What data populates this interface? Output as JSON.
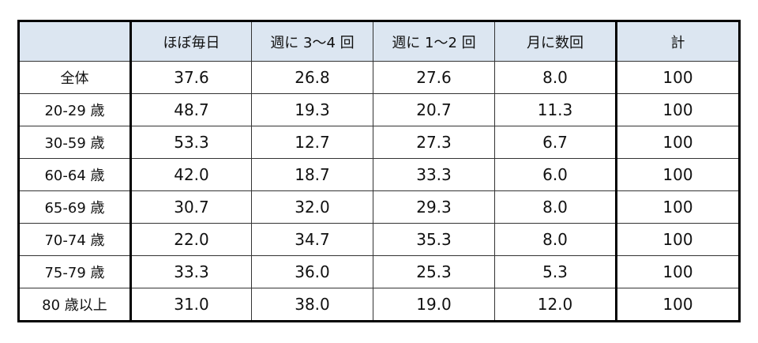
{
  "header": {
    "corner": "",
    "columns": [
      "ほぼ毎日",
      "週に 3〜4 回",
      "週に 1〜2 回",
      "月に数回",
      "計"
    ]
  },
  "rows": [
    {
      "label": "全体",
      "values": [
        "37.6",
        "26.8",
        "27.6",
        "8.0",
        "100"
      ]
    },
    {
      "label": "20-29 歳",
      "values": [
        "48.7",
        "19.3",
        "20.7",
        "11.3",
        "100"
      ]
    },
    {
      "label": "30-59 歳",
      "values": [
        "53.3",
        "12.7",
        "27.3",
        "6.7",
        "100"
      ]
    },
    {
      "label": "60-64 歳",
      "values": [
        "42.0",
        "18.7",
        "33.3",
        "6.0",
        "100"
      ]
    },
    {
      "label": "65-69 歳",
      "values": [
        "30.7",
        "32.0",
        "29.3",
        "8.0",
        "100"
      ]
    },
    {
      "label": "70-74 歳",
      "values": [
        "22.0",
        "34.7",
        "35.3",
        "8.0",
        "100"
      ]
    },
    {
      "label": "75-79 歳",
      "values": [
        "33.3",
        "36.0",
        "25.3",
        "5.3",
        "100"
      ]
    },
    {
      "label": "80 歳以上",
      "values": [
        "31.0",
        "38.0",
        "19.0",
        "12.0",
        "100"
      ]
    }
  ],
  "colors": {
    "header_bg": "#dce6f1",
    "border": "#000000"
  }
}
